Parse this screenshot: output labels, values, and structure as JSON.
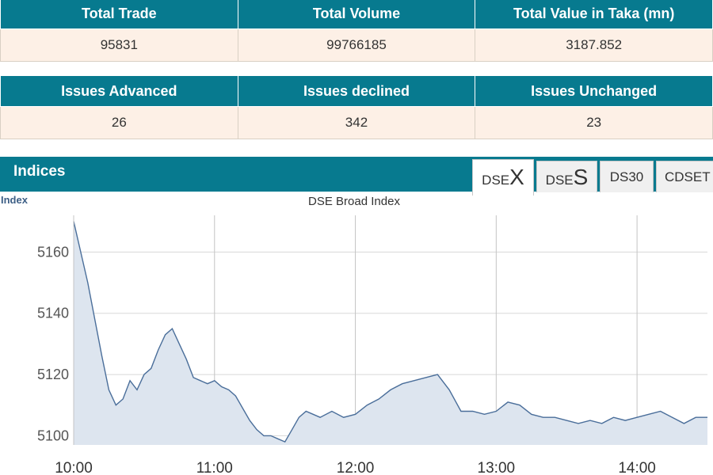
{
  "market_summary": {
    "row1": {
      "headers": [
        "Total Trade",
        "Total Volume",
        "Total Value in Taka (mn)"
      ],
      "values": [
        "95831",
        "99766185",
        "3187.852"
      ]
    },
    "row2": {
      "headers": [
        "Issues Advanced",
        "Issues declined",
        "Issues Unchanged"
      ],
      "values": [
        "26",
        "342",
        "23"
      ]
    }
  },
  "indices": {
    "title": "Indices",
    "tabs": [
      {
        "prefix": "DSE",
        "suffix": "X",
        "active": true
      },
      {
        "prefix": "DSE",
        "suffix": "S",
        "active": false
      },
      {
        "prefix": "DS30",
        "suffix": "",
        "active": false
      },
      {
        "prefix": "CDSET",
        "suffix": "",
        "active": false
      }
    ]
  },
  "colors": {
    "header_bg": "#077a8f",
    "value_bg": "#fdf0e6",
    "line": "#4a6e9a",
    "area": "#dde5ef"
  },
  "chart_data": {
    "type": "area",
    "title": "DSE Broad Index",
    "ylabel": "Index",
    "xlabel": "",
    "x_ticks": [
      "10:00",
      "11:00",
      "12:00",
      "13:00",
      "14:00"
    ],
    "y_ticks": [
      5100,
      5120,
      5140,
      5160
    ],
    "xlim": [
      "10:00",
      "14:30"
    ],
    "ylim": [
      5097,
      5172
    ],
    "grid": true,
    "series": [
      {
        "x": [
          "10:00",
          "10:03",
          "10:06",
          "10:09",
          "10:12",
          "10:15",
          "10:18",
          "10:21",
          "10:24",
          "10:27",
          "10:30",
          "10:33",
          "10:36",
          "10:39",
          "10:42",
          "10:45",
          "10:48",
          "10:51",
          "10:54",
          "10:57",
          "11:00",
          "11:03",
          "11:06",
          "11:09",
          "11:12",
          "11:15",
          "11:18",
          "11:21",
          "11:24",
          "11:27",
          "11:30",
          "11:33",
          "11:36",
          "11:39",
          "11:42",
          "11:45",
          "11:50",
          "11:55",
          "12:00",
          "12:05",
          "12:10",
          "12:15",
          "12:20",
          "12:25",
          "12:30",
          "12:35",
          "12:40",
          "12:45",
          "12:50",
          "12:55",
          "13:00",
          "13:05",
          "13:10",
          "13:15",
          "13:20",
          "13:25",
          "13:30",
          "13:35",
          "13:40",
          "13:45",
          "13:50",
          "13:55",
          "14:00",
          "14:05",
          "14:10",
          "14:15",
          "14:20",
          "14:25",
          "14:30"
        ],
        "y": [
          5170,
          5160,
          5150,
          5138,
          5126,
          5115,
          5110,
          5112,
          5118,
          5115,
          5120,
          5122,
          5128,
          5133,
          5135,
          5130,
          5125,
          5119,
          5118,
          5117,
          5118,
          5116,
          5115,
          5113,
          5109,
          5105,
          5102,
          5100,
          5100,
          5099,
          5098,
          5102,
          5106,
          5108,
          5107,
          5106,
          5108,
          5106,
          5107,
          5110,
          5112,
          5115,
          5117,
          5118,
          5119,
          5120,
          5115,
          5108,
          5108,
          5107,
          5108,
          5111,
          5110,
          5107,
          5106,
          5106,
          5105,
          5104,
          5105,
          5104,
          5106,
          5105,
          5106,
          5107,
          5108,
          5106,
          5104,
          5106,
          5106
        ]
      }
    ]
  }
}
